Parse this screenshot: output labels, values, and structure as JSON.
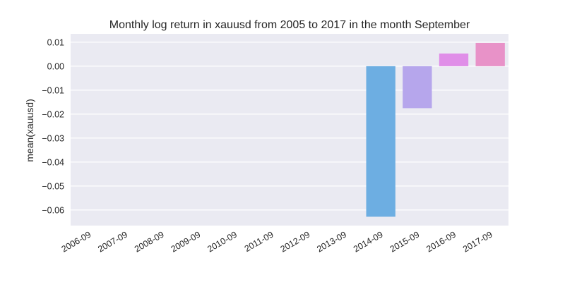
{
  "chart_data": {
    "type": "bar",
    "title": "Monthly log return in xauusd from 2005 to 2017 in the month September",
    "xlabel": "",
    "ylabel": "mean(xauusd)",
    "categories": [
      "2006-09",
      "2007-09",
      "2008-09",
      "2009-09",
      "2010-09",
      "2011-09",
      "2012-09",
      "2013-09",
      "2014-09",
      "2015-09",
      "2016-09",
      "2017-09"
    ],
    "values": [
      null,
      null,
      null,
      null,
      null,
      null,
      null,
      null,
      -0.0628,
      -0.0175,
      0.0053,
      0.0097
    ],
    "colors": [
      "#f77189",
      "#dc8932",
      "#ae9d31",
      "#77ab31",
      "#33b07a",
      "#36ada4",
      "#38a9c5",
      "#6e9bf4",
      "#6daee2",
      "#b6a6ec",
      "#e08ee8",
      "#e892c8"
    ],
    "ylim": [
      -0.0665,
      0.0135
    ],
    "yticks": [
      0.01,
      0.0,
      -0.01,
      -0.02,
      -0.03,
      -0.04,
      -0.05,
      -0.06
    ],
    "ytick_labels": [
      "0.01",
      "0.00",
      "−0.01",
      "−0.02",
      "−0.03",
      "−0.04",
      "−0.05",
      "−0.06"
    ],
    "grid": true,
    "background": "#eaeaf2",
    "grid_color": "#ffffff"
  }
}
